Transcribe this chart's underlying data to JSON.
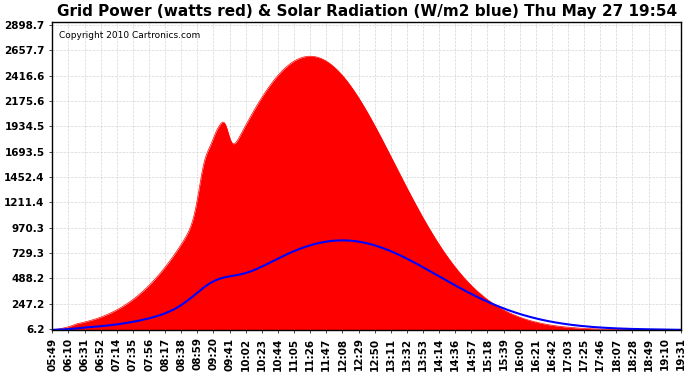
{
  "title": "Grid Power (watts red) & Solar Radiation (W/m2 blue) Thu May 27 19:54",
  "copyright": "Copyright 2010 Cartronics.com",
  "yticks": [
    6.2,
    247.2,
    488.2,
    729.3,
    970.3,
    1211.4,
    1452.4,
    1693.5,
    1934.5,
    2175.6,
    2416.6,
    2657.7,
    2898.7
  ],
  "ymax": 2898.7,
  "ymin": 0,
  "background_color": "#ffffff",
  "plot_bg_color": "#ffffff",
  "grid_color": "#cccccc",
  "red_color": "#ff0000",
  "blue_color": "#0000ff",
  "title_fontsize": 11,
  "tick_fontsize": 7.5,
  "x_labels": [
    "05:49",
    "06:10",
    "06:31",
    "06:52",
    "07:14",
    "07:35",
    "07:56",
    "08:17",
    "08:38",
    "08:59",
    "09:20",
    "09:41",
    "10:02",
    "10:23",
    "10:44",
    "11:05",
    "11:26",
    "11:47",
    "12:08",
    "12:29",
    "12:50",
    "13:11",
    "13:32",
    "13:53",
    "14:14",
    "14:36",
    "14:57",
    "15:18",
    "15:39",
    "16:00",
    "16:21",
    "16:42",
    "17:03",
    "17:25",
    "17:46",
    "18:07",
    "18:28",
    "18:49",
    "19:10",
    "19:31"
  ]
}
